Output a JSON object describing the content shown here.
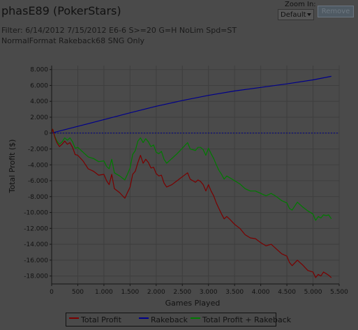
{
  "header": {
    "title": "phasE89 (PokerStars)",
    "filter_line1": "Filter: 6/14/2012 7/15/2012 E6-6 S>=20 G=H NoLim Spd=ST",
    "filter_line2": "NormalFormat Rakeback68 SNG Only"
  },
  "zoom": {
    "label": "Zoom In:",
    "value": "Default"
  },
  "remove_button": {
    "label": "Remove"
  },
  "colors": {
    "total_profit": "#7a0000",
    "rakeback": "#00008a",
    "total_plus_rakeback": "#007a00",
    "grid": "#3e3e3e",
    "axis": "#161616"
  },
  "chart_data": {
    "type": "line",
    "xlabel": "Games Played",
    "ylabel": "Total Profit ($)",
    "xlim": [
      0,
      5500
    ],
    "ylim": [
      -19000,
      8500
    ],
    "x_ticks": [
      0,
      500,
      1000,
      1500,
      2000,
      2500,
      3000,
      3500,
      4000,
      4500,
      5000,
      5500
    ],
    "x_tick_labels": [
      "0",
      "500",
      "1.000",
      "1.500",
      "2.000",
      "2.500",
      "3.000",
      "3.500",
      "4.000",
      "4.500",
      "5.000",
      "5.500"
    ],
    "y_ticks": [
      8000,
      6000,
      4000,
      2000,
      0,
      -2000,
      -4000,
      -6000,
      -8000,
      -10000,
      -12000,
      -14000,
      -16000,
      -18000
    ],
    "y_tick_labels": [
      "8.000",
      "6.000",
      "4.000",
      "2.000",
      "0",
      "-2.000",
      "-4.000",
      "-6.000",
      "-8.000",
      "-10.000",
      "-12.000",
      "-14.000",
      "-16.000",
      "-18.000"
    ],
    "zero_line": true,
    "legend_position": "bottom",
    "series": [
      {
        "name": "Total Profit",
        "x": [
          0,
          20,
          60,
          100,
          150,
          200,
          250,
          300,
          350,
          400,
          450,
          500,
          600,
          700,
          800,
          900,
          1000,
          1050,
          1100,
          1150,
          1200,
          1300,
          1400,
          1450,
          1500,
          1550,
          1600,
          1650,
          1700,
          1750,
          1800,
          1850,
          1900,
          1950,
          2000,
          2050,
          2100,
          2150,
          2200,
          2300,
          2400,
          2500,
          2600,
          2650,
          2700,
          2750,
          2800,
          2850,
          2900,
          2950,
          3000,
          3050,
          3100,
          3150,
          3200,
          3250,
          3300,
          3350,
          3400,
          3500,
          3600,
          3700,
          3800,
          3900,
          4000,
          4100,
          4200,
          4300,
          4400,
          4500,
          4550,
          4600,
          4700,
          4800,
          4900,
          5000,
          5050,
          5100,
          5150,
          5200,
          5250,
          5300,
          5350
        ],
        "y": [
          0,
          500,
          -500,
          -1200,
          -1700,
          -1400,
          -1000,
          -1400,
          -1200,
          -1800,
          -2700,
          -2800,
          -3500,
          -4500,
          -4800,
          -5300,
          -5200,
          -6000,
          -6500,
          -5200,
          -7000,
          -7500,
          -8200,
          -7500,
          -6800,
          -5200,
          -4800,
          -3700,
          -2800,
          -3800,
          -3300,
          -3700,
          -4400,
          -4300,
          -5100,
          -5400,
          -5300,
          -6300,
          -6800,
          -6500,
          -6000,
          -5500,
          -5000,
          -5800,
          -6000,
          -6200,
          -5900,
          -6100,
          -6500,
          -7300,
          -6500,
          -7300,
          -7900,
          -8800,
          -9500,
          -10200,
          -10800,
          -10500,
          -10800,
          -11500,
          -12000,
          -12800,
          -13200,
          -13300,
          -13800,
          -14200,
          -14000,
          -14600,
          -15200,
          -15500,
          -16300,
          -16700,
          -16000,
          -16600,
          -17300,
          -17500,
          -18200,
          -17800,
          -18000,
          -17500,
          -17700,
          -17900,
          -18200
        ]
      },
      {
        "name": "Rakeback",
        "x": [
          0,
          500,
          1000,
          1500,
          2000,
          2500,
          3000,
          3500,
          4000,
          4500,
          5000,
          5350
        ],
        "y": [
          0,
          850,
          1700,
          2550,
          3380,
          4100,
          4750,
          5300,
          5750,
          6200,
          6700,
          7150
        ]
      },
      {
        "name": "Total Profit + Rakeback",
        "x": [
          0,
          20,
          60,
          100,
          150,
          200,
          250,
          300,
          350,
          400,
          450,
          500,
          600,
          700,
          800,
          900,
          1000,
          1050,
          1100,
          1150,
          1200,
          1300,
          1400,
          1450,
          1500,
          1550,
          1600,
          1650,
          1700,
          1750,
          1800,
          1850,
          1900,
          1950,
          2000,
          2050,
          2100,
          2150,
          2200,
          2300,
          2400,
          2500,
          2600,
          2650,
          2700,
          2750,
          2800,
          2850,
          2900,
          2950,
          3000,
          3050,
          3100,
          3150,
          3200,
          3250,
          3300,
          3350,
          3400,
          3500,
          3600,
          3700,
          3800,
          3900,
          4000,
          4100,
          4200,
          4300,
          4400,
          4500,
          4550,
          4600,
          4700,
          4800,
          4900,
          5000,
          5050,
          5100,
          5150,
          5200,
          5250,
          5300,
          5350
        ],
        "y": [
          0,
          500,
          -400,
          -1000,
          -1400,
          -1100,
          -600,
          -900,
          -600,
          -1100,
          -1900,
          -1800,
          -2400,
          -3000,
          -3200,
          -3600,
          -3500,
          -4200,
          -4500,
          -3300,
          -5000,
          -5400,
          -5900,
          -5200,
          -4400,
          -2700,
          -2200,
          -1000,
          -600,
          -1200,
          -700,
          -1100,
          -1700,
          -1500,
          -2400,
          -2600,
          -2300,
          -3300,
          -3800,
          -3200,
          -2600,
          -1900,
          -1200,
          -2000,
          -2100,
          -2200,
          -1800,
          -1800,
          -2100,
          -2800,
          -1900,
          -2600,
          -3200,
          -4000,
          -4700,
          -5200,
          -5800,
          -5400,
          -5600,
          -6000,
          -6400,
          -7000,
          -7300,
          -7300,
          -7600,
          -7900,
          -7600,
          -8000,
          -8500,
          -8800,
          -9500,
          -9700,
          -8700,
          -9300,
          -9800,
          -10200,
          -11000,
          -10500,
          -10700,
          -10300,
          -10400,
          -10300,
          -10800
        ]
      }
    ]
  }
}
